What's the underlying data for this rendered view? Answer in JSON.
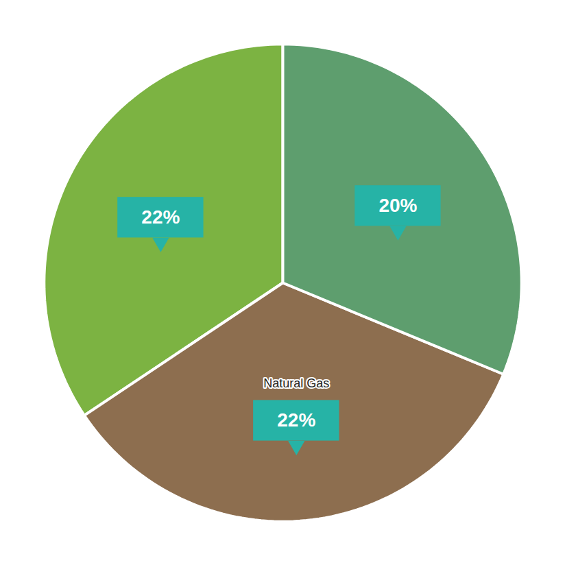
{
  "chart_data": {
    "type": "pie",
    "categories": [
      null,
      "Natural Gas",
      null
    ],
    "values": [
      22,
      22,
      20
    ],
    "value_labels": [
      "22%",
      "22%",
      "20%"
    ],
    "colors": [
      "#7cb342",
      "#8d6e4f",
      "#5e9e6e"
    ],
    "data_labels": true
  }
}
